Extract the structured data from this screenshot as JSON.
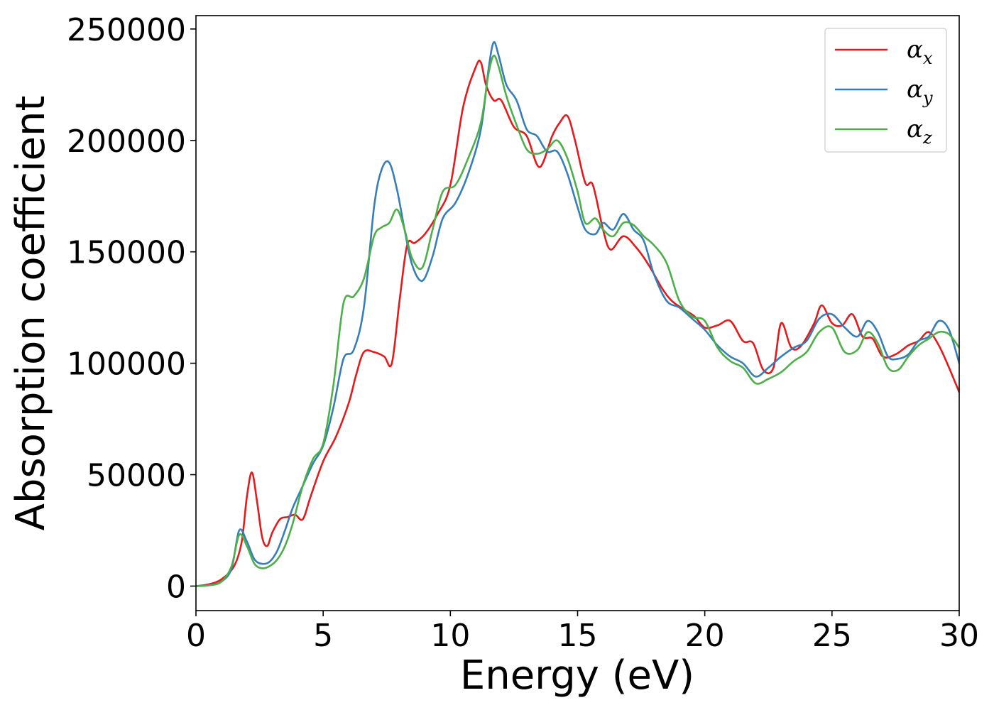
{
  "chart_data": {
    "type": "line",
    "xlabel": "Energy (eV)",
    "ylabel": "Absorption coefficient",
    "xlim": [
      0,
      30
    ],
    "ylim": [
      -11000,
      256000
    ],
    "xticks": [
      0,
      5,
      10,
      15,
      20,
      25,
      30
    ],
    "yticks": [
      0,
      50000,
      100000,
      150000,
      200000,
      250000
    ],
    "grid": false,
    "legend_position": "top-right",
    "series": [
      {
        "name": "α_x",
        "label_main": "α",
        "label_sub": "x",
        "color": "#e41a1c",
        "x": [
          0,
          0.5,
          1.0,
          1.5,
          1.8,
          2.0,
          2.2,
          2.4,
          2.6,
          2.8,
          3.0,
          3.3,
          3.6,
          3.9,
          4.2,
          4.5,
          5.0,
          5.5,
          6.0,
          6.3,
          6.6,
          7.0,
          7.4,
          7.7,
          8.0,
          8.3,
          8.6,
          9.0,
          9.5,
          10.0,
          10.5,
          11.0,
          11.2,
          11.4,
          11.7,
          12.0,
          12.5,
          13.0,
          13.5,
          14.0,
          14.3,
          14.6,
          14.9,
          15.3,
          15.6,
          16.0,
          16.3,
          16.8,
          17.3,
          17.8,
          18.3,
          18.7,
          19.2,
          19.6,
          20.0,
          20.5,
          21.0,
          21.5,
          21.9,
          22.3,
          22.7,
          23.0,
          23.4,
          23.8,
          24.3,
          24.6,
          25.0,
          25.4,
          25.8,
          26.2,
          26.6,
          27.0,
          27.5,
          28.0,
          28.4,
          28.8,
          29.2,
          29.6,
          30.0
        ],
        "y": [
          0,
          800,
          3000,
          9000,
          20000,
          40000,
          51000,
          38000,
          22000,
          18000,
          24000,
          30000,
          31000,
          32000,
          30000,
          40000,
          56000,
          67000,
          82000,
          95000,
          105000,
          105000,
          103000,
          100000,
          128000,
          153000,
          154000,
          158000,
          167000,
          180000,
          215000,
          233000,
          235000,
          225000,
          218000,
          218000,
          206000,
          202000,
          188000,
          202000,
          208000,
          211000,
          200000,
          181000,
          180000,
          160000,
          151000,
          157000,
          152000,
          144000,
          134000,
          128000,
          124000,
          121000,
          116000,
          117000,
          119000,
          110000,
          109000,
          97000,
          98000,
          118000,
          107000,
          108000,
          118000,
          126000,
          118000,
          117000,
          122000,
          112000,
          111000,
          103000,
          104000,
          108000,
          110000,
          114000,
          108000,
          98000,
          87000
        ]
      },
      {
        "name": "α_y",
        "label_main": "α",
        "label_sub": "y",
        "color": "#377eb8",
        "x": [
          0,
          0.5,
          1.0,
          1.4,
          1.7,
          2.0,
          2.3,
          2.6,
          2.9,
          3.2,
          3.5,
          3.8,
          4.2,
          4.6,
          5.0,
          5.4,
          5.8,
          6.2,
          6.6,
          7.0,
          7.3,
          7.6,
          7.9,
          8.2,
          8.5,
          8.9,
          9.3,
          9.7,
          10.2,
          10.7,
          11.2,
          11.5,
          11.7,
          11.9,
          12.2,
          12.6,
          13.0,
          13.4,
          13.8,
          14.2,
          14.6,
          15.0,
          15.3,
          15.7,
          16.0,
          16.4,
          16.8,
          17.2,
          17.6,
          18.0,
          18.5,
          19.0,
          19.5,
          20.0,
          20.5,
          21.0,
          21.5,
          22.0,
          22.5,
          23.0,
          23.5,
          24.0,
          24.5,
          25.0,
          25.5,
          26.0,
          26.4,
          26.8,
          27.2,
          27.6,
          28.0,
          28.4,
          28.8,
          29.2,
          29.6,
          30.0
        ],
        "y": [
          0,
          400,
          2000,
          8000,
          25000,
          20000,
          12000,
          10000,
          11000,
          16000,
          25000,
          35000,
          45000,
          55000,
          63000,
          80000,
          102000,
          106000,
          125000,
          170000,
          187000,
          190000,
          178000,
          160000,
          144000,
          137000,
          148000,
          165000,
          172000,
          185000,
          205000,
          232000,
          244000,
          238000,
          225000,
          218000,
          205000,
          202000,
          195000,
          195000,
          185000,
          170000,
          160000,
          158000,
          163000,
          160000,
          167000,
          160000,
          155000,
          140000,
          128000,
          125000,
          120000,
          115000,
          108000,
          103000,
          100000,
          94000,
          98000,
          103000,
          107000,
          110000,
          120000,
          122000,
          116000,
          112000,
          119000,
          114000,
          103000,
          102000,
          104000,
          110000,
          112000,
          119000,
          115000,
          100000
        ]
      },
      {
        "name": "α_z",
        "label_main": "α",
        "label_sub": "z",
        "color": "#4daf4a",
        "x": [
          0,
          0.5,
          1.0,
          1.4,
          1.7,
          2.0,
          2.3,
          2.6,
          2.9,
          3.2,
          3.5,
          3.8,
          4.2,
          4.6,
          5.0,
          5.4,
          5.8,
          6.2,
          6.6,
          7.0,
          7.3,
          7.6,
          7.9,
          8.2,
          8.5,
          8.9,
          9.3,
          9.7,
          10.2,
          10.7,
          11.2,
          11.5,
          11.7,
          11.9,
          12.2,
          12.6,
          13.0,
          13.4,
          13.8,
          14.2,
          14.6,
          15.0,
          15.3,
          15.7,
          16.0,
          16.4,
          16.8,
          17.2,
          17.6,
          18.0,
          18.5,
          19.0,
          19.5,
          20.0,
          20.5,
          21.0,
          21.5,
          22.0,
          22.5,
          23.0,
          23.5,
          24.0,
          24.5,
          25.0,
          25.5,
          26.0,
          26.4,
          26.8,
          27.2,
          27.6,
          28.0,
          28.4,
          28.8,
          29.2,
          29.6,
          30.0
        ],
        "y": [
          0,
          300,
          2000,
          9000,
          23000,
          18000,
          10000,
          8000,
          9000,
          12000,
          18000,
          28000,
          45000,
          57000,
          64000,
          90000,
          127000,
          130000,
          138000,
          157000,
          161000,
          163000,
          169000,
          160000,
          147000,
          143000,
          160000,
          177000,
          180000,
          192000,
          208000,
          230000,
          238000,
          233000,
          220000,
          207000,
          196000,
          194000,
          196000,
          200000,
          192000,
          177000,
          163000,
          165000,
          160000,
          157000,
          163000,
          162000,
          157000,
          153000,
          145000,
          128000,
          121000,
          119000,
          107000,
          101000,
          98000,
          91000,
          93000,
          96000,
          101000,
          105000,
          114000,
          116000,
          105000,
          106000,
          114000,
          109000,
          98000,
          97000,
          103000,
          108000,
          111000,
          114000,
          113000,
          107000
        ]
      }
    ]
  }
}
